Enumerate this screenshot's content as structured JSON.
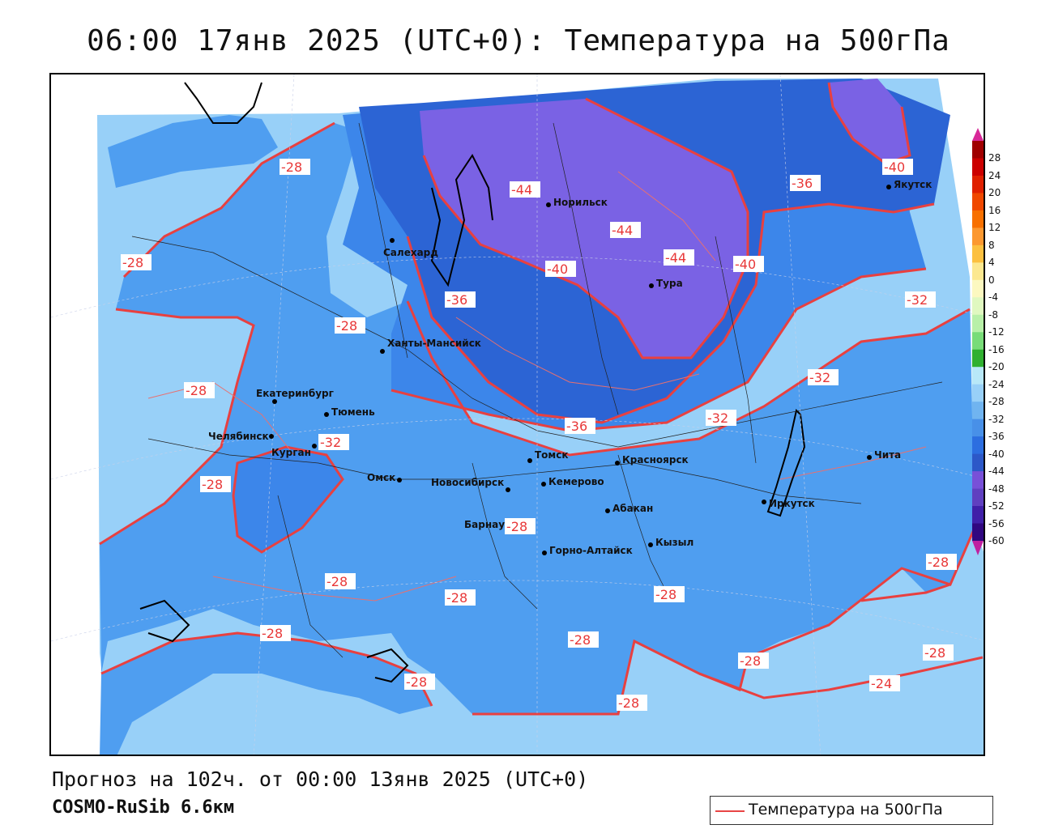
{
  "title": "06:00 17янв 2025 (UTC+0): Температура на 500гПа",
  "forecast_text": "Прогноз на 102ч. от 00:00 13янв 2025 (UTC+0)",
  "model_text": "COSMO-RuSib 6.6км",
  "legend": {
    "label": "Температура на 500гПа",
    "color": "#e84545"
  },
  "colorbar": {
    "labels": [
      "28",
      "24",
      "20",
      "16",
      "12",
      "8",
      "4",
      "0",
      "-4",
      "-8",
      "-12",
      "-16",
      "-20",
      "-24",
      "-28",
      "-32",
      "-36",
      "-40",
      "-44",
      "-48",
      "-52",
      "-56",
      "-60"
    ],
    "colors": [
      "#a00000",
      "#cc0000",
      "#e02000",
      "#f04800",
      "#f87000",
      "#fc9830",
      "#fcc040",
      "#fce890",
      "#fcf8c0",
      "#e0f8c0",
      "#b8f0a8",
      "#78dc78",
      "#30b030",
      "#b8e8f8",
      "#98d0f8",
      "#70b4f0",
      "#4890e8",
      "#2c6ee0",
      "#2c58c8",
      "#7850d8",
      "#6040c0",
      "#4020a8",
      "#300880"
    ],
    "top_color": "#d82898",
    "bottom_color": "#c020a0"
  },
  "cities": [
    {
      "name": "Норильск"
    },
    {
      "name": "Якутск"
    },
    {
      "name": "Салехард"
    },
    {
      "name": "Тура"
    },
    {
      "name": "Ханты-Мансийск"
    },
    {
      "name": "Екатеринбург"
    },
    {
      "name": "Тюмень"
    },
    {
      "name": "Челябинск"
    },
    {
      "name": "Курган"
    },
    {
      "name": "Омск"
    },
    {
      "name": "Новосибирск"
    },
    {
      "name": "Томск"
    },
    {
      "name": "Красноярск"
    },
    {
      "name": "Кемерово"
    },
    {
      "name": "Барнаул"
    },
    {
      "name": "Абакан"
    },
    {
      "name": "Горно-Алтайск"
    },
    {
      "name": "Кызыл"
    },
    {
      "name": "Иркутск"
    },
    {
      "name": "Чита"
    }
  ],
  "isotherm_labels": [
    "-28",
    "-28",
    "-28",
    "-28",
    "-32",
    "-28",
    "-36",
    "-44",
    "-40",
    "-44",
    "-44",
    "-40",
    "-36",
    "-40",
    "-32",
    "-32",
    "-32",
    "-36",
    "-28",
    "-28",
    "-28",
    "-28",
    "-28",
    "-28",
    "-28",
    "-28",
    "-28",
    "-28",
    "-28",
    "-24"
  ]
}
